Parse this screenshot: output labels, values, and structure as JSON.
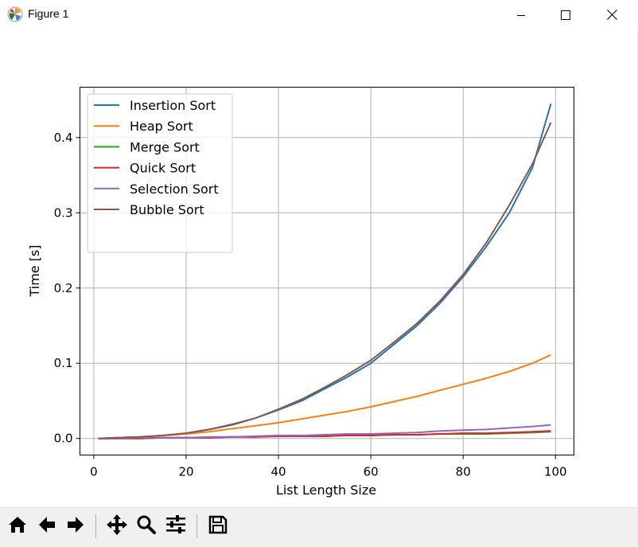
{
  "window": {
    "title": "Figure 1",
    "icons": [
      "matplotlib-icon",
      "minimize-icon",
      "maximize-icon",
      "close-icon"
    ]
  },
  "toolbar": {
    "buttons": [
      "home-icon",
      "back-icon",
      "forward-icon",
      "pan-icon",
      "zoom-icon",
      "configure-subplots-icon",
      "save-icon"
    ]
  },
  "chart_data": {
    "type": "line",
    "xlabel": "List Length Size",
    "ylabel": "Time [s]",
    "xlim": [
      -3,
      104
    ],
    "ylim": [
      -0.022,
      0.467
    ],
    "xticks": [
      0,
      20,
      40,
      60,
      80,
      100
    ],
    "xtick_labels": [
      "0",
      "20",
      "40",
      "60",
      "80",
      "100"
    ],
    "yticks": [
      0.0,
      0.1,
      0.2,
      0.3,
      0.4
    ],
    "ytick_labels": [
      "0.0",
      "0.1",
      "0.2",
      "0.3",
      "0.4"
    ],
    "grid": true,
    "legend_position": "upper-left",
    "x": [
      1,
      5,
      10,
      15,
      20,
      25,
      30,
      35,
      40,
      45,
      50,
      55,
      60,
      65,
      70,
      75,
      80,
      85,
      90,
      95,
      99
    ],
    "series": [
      {
        "name": "Insertion Sort",
        "color": "#1f77b4",
        "values": [
          0.0,
          0.001,
          0.002,
          0.004,
          0.007,
          0.012,
          0.018,
          0.027,
          0.038,
          0.05,
          0.066,
          0.082,
          0.1,
          0.125,
          0.15,
          0.18,
          0.215,
          0.255,
          0.3,
          0.36,
          0.445
        ]
      },
      {
        "name": "Heap Sort",
        "color": "#ff7f0e",
        "values": [
          0.0,
          0.001,
          0.002,
          0.004,
          0.006,
          0.009,
          0.013,
          0.017,
          0.021,
          0.026,
          0.031,
          0.036,
          0.042,
          0.049,
          0.056,
          0.064,
          0.072,
          0.08,
          0.089,
          0.1,
          0.111
        ]
      },
      {
        "name": "Merge Sort",
        "color": "#2ca02c",
        "values": [
          0.0,
          0.0,
          0.0,
          0.001,
          0.001,
          0.001,
          0.002,
          0.002,
          0.003,
          0.003,
          0.003,
          0.004,
          0.004,
          0.005,
          0.005,
          0.006,
          0.006,
          0.006,
          0.007,
          0.008,
          0.009
        ]
      },
      {
        "name": "Quick Sort",
        "color": "#d62728",
        "values": [
          0.0,
          0.0,
          0.0,
          0.001,
          0.001,
          0.001,
          0.002,
          0.002,
          0.003,
          0.003,
          0.003,
          0.004,
          0.004,
          0.005,
          0.005,
          0.006,
          0.007,
          0.007,
          0.008,
          0.009,
          0.01
        ]
      },
      {
        "name": "Selection Sort",
        "color": "#9467bd",
        "values": [
          0.0,
          0.0,
          0.001,
          0.001,
          0.001,
          0.002,
          0.002,
          0.003,
          0.004,
          0.004,
          0.005,
          0.006,
          0.006,
          0.007,
          0.008,
          0.01,
          0.011,
          0.012,
          0.014,
          0.016,
          0.018
        ]
      },
      {
        "name": "Bubble Sort",
        "color": "#8c564b",
        "values": [
          0.0,
          0.001,
          0.002,
          0.004,
          0.007,
          0.012,
          0.019,
          0.027,
          0.039,
          0.052,
          0.068,
          0.085,
          0.104,
          0.128,
          0.153,
          0.183,
          0.218,
          0.26,
          0.31,
          0.365,
          0.42
        ]
      }
    ]
  }
}
